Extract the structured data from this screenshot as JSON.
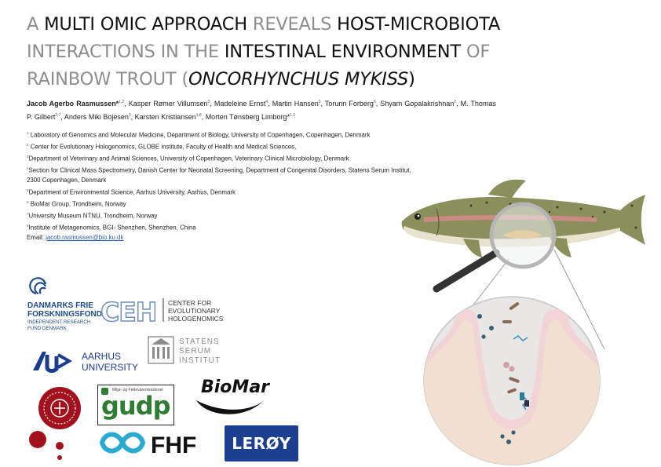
{
  "title": {
    "segments": [
      {
        "text": "A ",
        "style": "grey"
      },
      {
        "text": "Multi omic approach ",
        "style": "dark"
      },
      {
        "text": "reveals ",
        "style": "grey"
      },
      {
        "text": "host-microbiota interactions in the ",
        "style": "dark_then_grey"
      },
      {
        "text": "intestinal environment ",
        "style": "dark"
      },
      {
        "text": "of rainbow trout (",
        "style": "grey"
      },
      {
        "text": "Oncorhynchus mykiss",
        "style": "italic"
      },
      {
        "text": ")",
        "style": "grey"
      }
    ],
    "line1_a": "A ",
    "line1_b": "Multi omic approach ",
    "line1_c": "reveals ",
    "line1_d": "host-microbiota",
    "line2_a": "interactions in the ",
    "line2_b": "intestinal environment ",
    "line2_c": "of",
    "line3_a": "rainbow trout (",
    "line3_b": "Oncorhynchus mykiss",
    "line3_c": ")"
  },
  "authors": {
    "a1": "Jacob Agerbo Rasmussen*",
    "a1_sup": "1,2",
    "a2": "Kasper Rømer Villumsen",
    "a2_sup": "3",
    "a3": "Madeleine Ernst",
    "a3_sup": "4",
    "a4": "Martin Hansen",
    "a4_sup": "5",
    "a5": "Torunn Forberg",
    "a5_sup": "6",
    "a6": "Shyam Gopalakrishnan",
    "a6_sup": "2",
    "a7": "M. Thomas P. Gilbert",
    "a7_sup": "2,7",
    "a8": "Anders Miki Bojesen",
    "a8_sup": "3",
    "a9": "Karsten Kristiansen",
    "a9_sup": "1,8",
    "a10": "Morten Tønsberg Limborg*",
    "a10_sup": "1,2"
  },
  "affiliations": [
    {
      "num": "1",
      "text": "Laboratory of Genomics and Molecular Medicine, Department of Biology, University of Copenhagen, Copenhagen, Denmark"
    },
    {
      "num": "2",
      "text": "Center for Evolutionary Hologenomics, GLOBE institute, Faculty of Health and Medical Sciences,"
    },
    {
      "num": "3",
      "text": "Department of Veterinary and Animal Sciences, University of Copenhagen, Veterinary Clinical Microbiology, Denmark"
    },
    {
      "num": "4",
      "text": "Section for Clinical Mass Spectrometry, Danish Center for Neonatal Screening, Department of Congenital Disorders, Statens Serum Institut,"
    },
    {
      "num": "",
      "text": "2300 Copenhagen, Denmark"
    },
    {
      "num": "5",
      "text": "Department of Environmental Science, Aarhus University, Aarhus, Denmark"
    },
    {
      "num": "6",
      "text": "BioMar Group, Trondheim, Norway"
    },
    {
      "num": "7",
      "text": "University Museum NTNU, Trondheim, Norway"
    },
    {
      "num": "8",
      "text": "Institute of Metagenomics, BGI- Shenzhen, Shenzhen, China"
    }
  ],
  "email": {
    "label": "Email: ",
    "address": "jacob.rasmussen@bio.ku.dk"
  },
  "logos": {
    "dff_line1": "DANMARKS FRIE",
    "dff_line2": "FORSKNINGSFOND",
    "dff_line3": "INDEPENDENT RESEARCH",
    "dff_line4": "FUND DENMARK",
    "ceh_mark": "CEH",
    "ceh_line1": "CENTER FOR",
    "ceh_line2": "EVOLUTIONARY",
    "ceh_line3": "HOLOGENOMICS",
    "au_line1": "AARHUS",
    "au_line2": "UNIVERSITY",
    "ssi_line1": "STATENS",
    "ssi_line2": "SERUM",
    "ssi_line3": "INSTITUT",
    "gudp_small": "Miljø- og Fødevareministeriet",
    "gudp_text": "gudp",
    "biomar_text": "BioMar",
    "fhf_text": "FHF",
    "leroy_text": "LERØY"
  },
  "colors": {
    "grey_title": "#8d8d8d",
    "dark_title": "#111111",
    "dff_blue": "#1f4e8c",
    "ceh_blue": "#6f8fbf",
    "au_blue": "#1a3c8e",
    "gudp_green": "#2f7d32",
    "fhf_teal": "#2aa9d2",
    "leroy_blue": "#1d3f8f",
    "ku_red": "#a3121c",
    "gut_pink": "#f3d4d6",
    "gut_tissue": "#f1e0cf"
  }
}
